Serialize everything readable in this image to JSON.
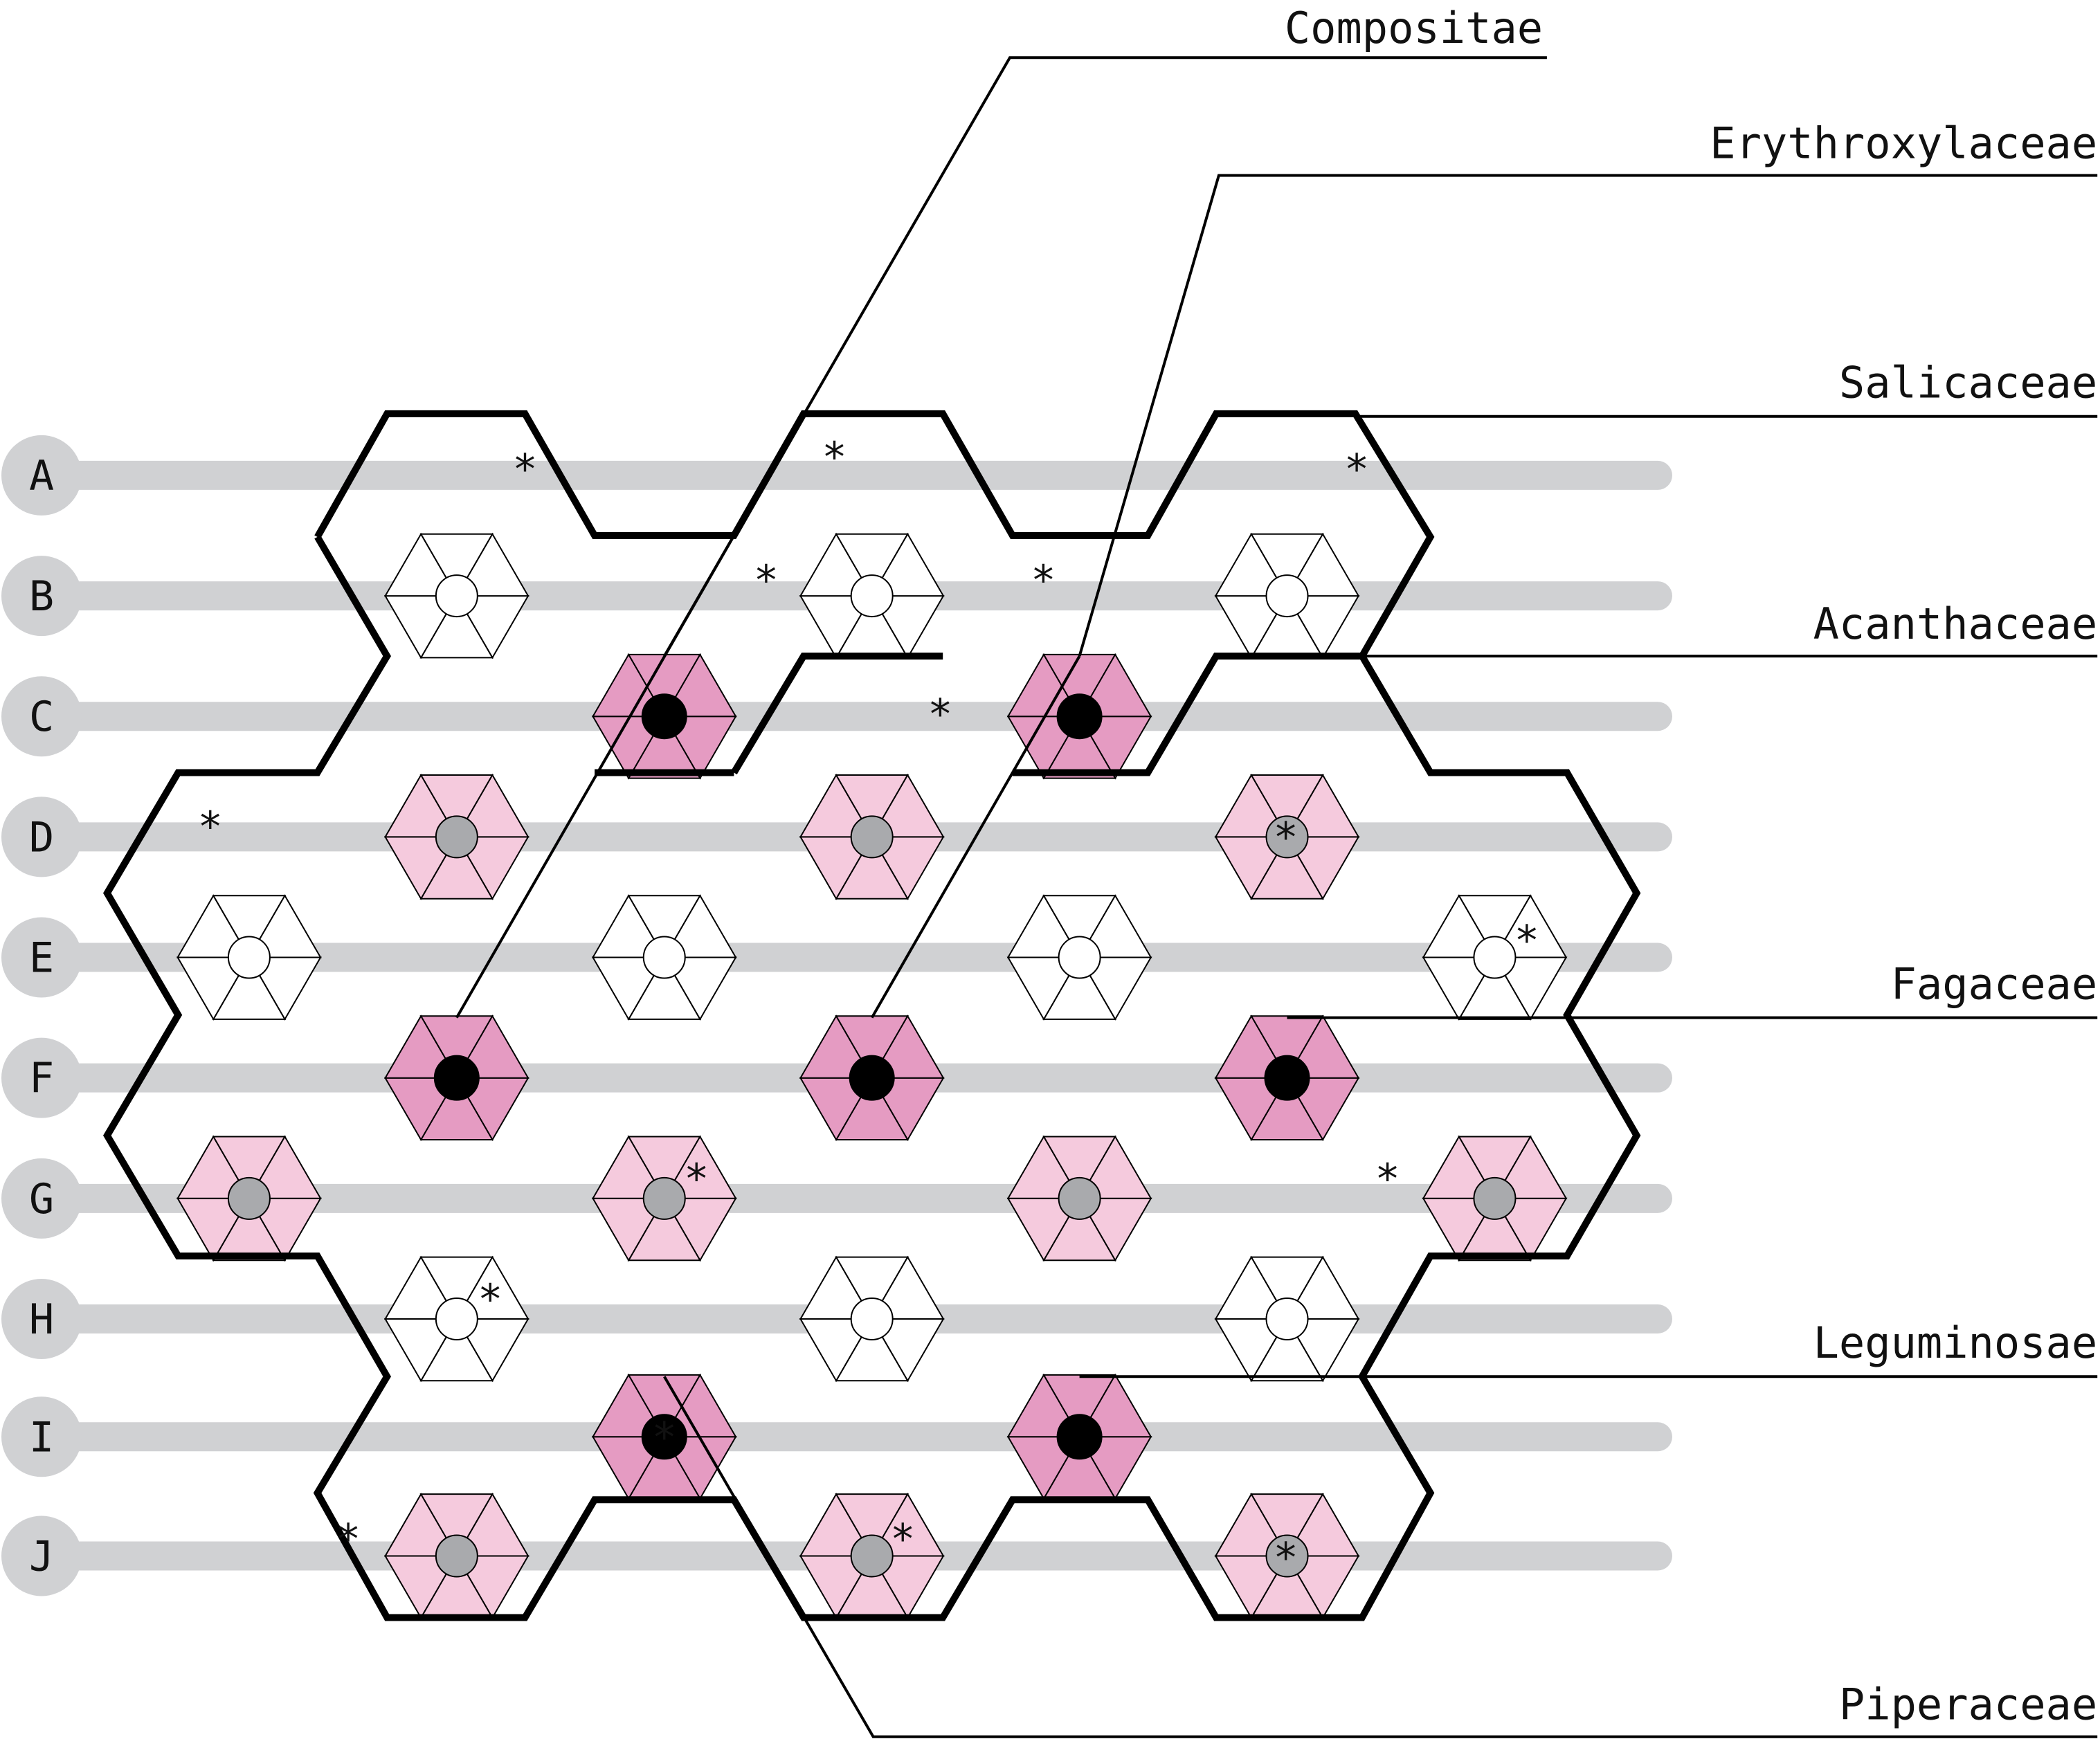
{
  "rows": [
    "A",
    "B",
    "C",
    "D",
    "E",
    "F",
    "G",
    "H",
    "I",
    "J"
  ],
  "colors": {
    "white": "#ffffff",
    "light_pink": "#f5cadd",
    "dark_pink": "#e59bc2",
    "grey_node": "#a9aaad",
    "black_node": "#000000",
    "row_track": "#d0d1d3",
    "line": "#000000"
  },
  "families": [
    {
      "name": "Compositae"
    },
    {
      "name": "Erythroxylaceae"
    },
    {
      "name": "Salicaceae"
    },
    {
      "name": "Acanthaceae"
    },
    {
      "name": "Fagaceae"
    },
    {
      "name": "Leguminosae"
    },
    {
      "name": "Piperaceae"
    }
  ],
  "star_marker": "*"
}
